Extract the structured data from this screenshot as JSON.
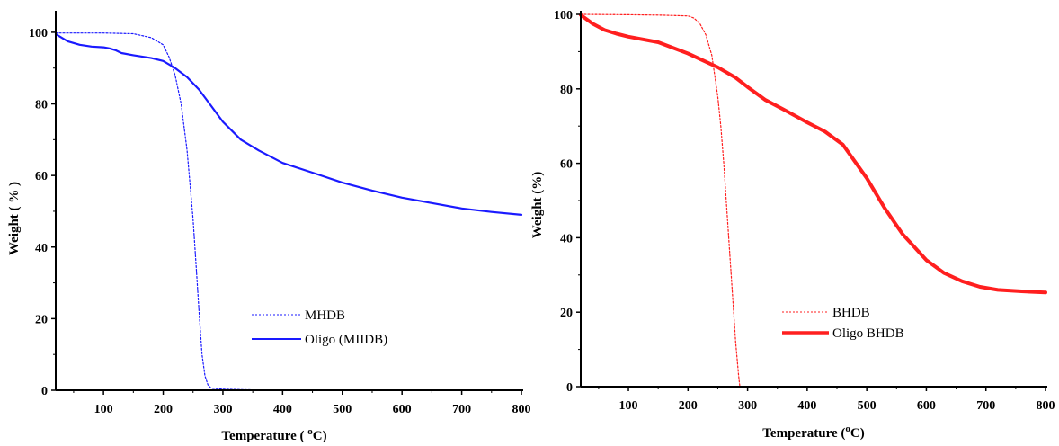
{
  "chart_data": [
    {
      "type": "line",
      "xlabel": "Temperature ( °C)",
      "ylabel": "Weight ( % )",
      "xlim": [
        20,
        800
      ],
      "ylim": [
        0,
        105
      ],
      "xticks": [
        100,
        200,
        300,
        400,
        500,
        600,
        700,
        800
      ],
      "yticks": [
        0,
        20,
        40,
        60,
        80,
        100
      ],
      "legend_position": "bottom-center",
      "grid": false,
      "series": [
        {
          "name": "MHDB",
          "style": "dotted",
          "color": "#1a1aff",
          "x": [
            20,
            100,
            150,
            180,
            200,
            210,
            220,
            230,
            240,
            250,
            255,
            260,
            265,
            270,
            275,
            280,
            300,
            350,
            400
          ],
          "y": [
            99.8,
            99.8,
            99.6,
            98.5,
            96.5,
            93,
            88,
            80,
            67,
            48,
            35,
            22,
            10,
            4,
            1.5,
            0.6,
            0.3,
            0.1,
            0
          ]
        },
        {
          "name": "Oligo (MIIDB)",
          "style": "solid",
          "color": "#1a1aff",
          "x": [
            20,
            40,
            60,
            80,
            100,
            110,
            120,
            130,
            150,
            180,
            200,
            220,
            240,
            260,
            280,
            300,
            330,
            360,
            400,
            450,
            500,
            550,
            600,
            650,
            700,
            750,
            800
          ],
          "y": [
            99.5,
            97.5,
            96.5,
            96,
            95.8,
            95.5,
            95,
            94.2,
            93.6,
            92.8,
            92,
            90,
            87.5,
            84,
            79.5,
            75,
            70,
            67,
            63.5,
            60.8,
            58,
            55.8,
            53.8,
            52.3,
            50.8,
            49.8,
            49
          ]
        }
      ]
    },
    {
      "type": "line",
      "xlabel": "Temperature (°C)",
      "ylabel": "Weight (%)",
      "xlim": [
        20,
        800
      ],
      "ylim": [
        0,
        100
      ],
      "xticks": [
        100,
        200,
        300,
        400,
        500,
        600,
        700,
        800
      ],
      "yticks": [
        0,
        20,
        40,
        60,
        80,
        100
      ],
      "legend_position": "bottom-center",
      "grid": false,
      "series": [
        {
          "name": "BHDB",
          "style": "dotted",
          "color": "#ff1f1f",
          "x": [
            20,
            100,
            150,
            200,
            210,
            220,
            230,
            240,
            250,
            255,
            260,
            265,
            270,
            275,
            280,
            285,
            287
          ],
          "y": [
            100,
            99.9,
            99.8,
            99.6,
            99,
            97.5,
            94.5,
            89,
            78,
            70,
            60,
            48,
            36,
            24,
            12,
            3,
            0
          ]
        },
        {
          "name": "Oligo BHDB",
          "style": "solid",
          "color": "#ff1f1f",
          "x": [
            20,
            40,
            60,
            80,
            100,
            150,
            200,
            250,
            280,
            300,
            330,
            360,
            400,
            430,
            460,
            500,
            530,
            560,
            600,
            630,
            660,
            690,
            720,
            760,
            800
          ],
          "y": [
            99.8,
            97.5,
            95.8,
            94.8,
            94,
            92.5,
            89.5,
            85.8,
            83,
            80.5,
            77,
            74.5,
            71,
            68.5,
            65,
            56,
            48,
            41,
            34,
            30.5,
            28.3,
            26.8,
            26,
            25.6,
            25.3
          ]
        }
      ]
    }
  ]
}
